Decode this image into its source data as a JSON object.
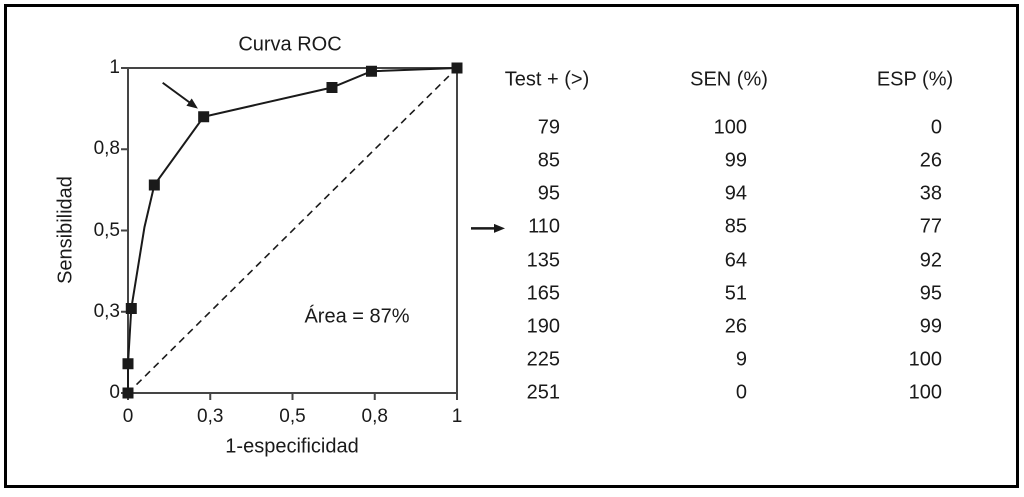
{
  "figure": {
    "background": "#ffffff",
    "border_color": "#000000",
    "ink_color": "#1a1a1a",
    "axis_color": "#454545"
  },
  "chart_data": {
    "type": "line",
    "title": "Curva ROC",
    "xlabel": "1-especificidad",
    "ylabel": "Sensibilidad",
    "xlim": [
      0,
      1
    ],
    "ylim": [
      0,
      1
    ],
    "grid": false,
    "frame": "full-box",
    "x_ticks": [
      {
        "v": 0,
        "label": "0"
      },
      {
        "v": 0.25,
        "label": "0,3"
      },
      {
        "v": 0.5,
        "label": "0,5"
      },
      {
        "v": 0.75,
        "label": "0,8"
      },
      {
        "v": 1,
        "label": "1"
      }
    ],
    "y_ticks": [
      {
        "v": 0,
        "label": "0"
      },
      {
        "v": 0.25,
        "label": "0,3"
      },
      {
        "v": 0.5,
        "label": "0,5"
      },
      {
        "v": 0.75,
        "label": "0,8"
      },
      {
        "v": 1,
        "label": "1"
      }
    ],
    "series": [
      {
        "name": "ROC curve",
        "marker": "filled-square",
        "points": [
          {
            "threshold": 251,
            "x": 0.0,
            "y": 0.0,
            "marker": true
          },
          {
            "threshold": 225,
            "x": 0.0,
            "y": 0.09,
            "marker": true
          },
          {
            "threshold": 190,
            "x": 0.01,
            "y": 0.26,
            "marker": true
          },
          {
            "threshold": 165,
            "x": 0.05,
            "y": 0.51,
            "marker": false
          },
          {
            "threshold": 135,
            "x": 0.08,
            "y": 0.64,
            "marker": true
          },
          {
            "threshold": 110,
            "x": 0.23,
            "y": 0.85,
            "marker": true,
            "arrow": true
          },
          {
            "threshold": 95,
            "x": 0.62,
            "y": 0.94,
            "marker": true
          },
          {
            "threshold": 85,
            "x": 0.74,
            "y": 0.99,
            "marker": true
          },
          {
            "threshold": 79,
            "x": 1.0,
            "y": 1.0,
            "marker": true
          }
        ]
      }
    ],
    "reference_diagonal": {
      "from": [
        0,
        0
      ],
      "to": [
        1,
        1
      ],
      "style": "dashed"
    },
    "annotation": {
      "text": "Área = 87%",
      "area_percent": 87
    }
  },
  "table": {
    "columns": [
      "Test + (>)",
      "SEN (%)",
      "ESP (%)"
    ],
    "rows": [
      {
        "cells": [
          "79",
          "100",
          "0"
        ],
        "arrow": false
      },
      {
        "cells": [
          "85",
          "99",
          "26"
        ],
        "arrow": false
      },
      {
        "cells": [
          "95",
          "94",
          "38"
        ],
        "arrow": false
      },
      {
        "cells": [
          "110",
          "85",
          "77"
        ],
        "arrow": true
      },
      {
        "cells": [
          "135",
          "64",
          "92"
        ],
        "arrow": false
      },
      {
        "cells": [
          "165",
          "51",
          "95"
        ],
        "arrow": false
      },
      {
        "cells": [
          "190",
          "26",
          "99"
        ],
        "arrow": false
      },
      {
        "cells": [
          "225",
          "9",
          "100"
        ],
        "arrow": false
      },
      {
        "cells": [
          "251",
          "0",
          "100"
        ],
        "arrow": false
      }
    ]
  }
}
